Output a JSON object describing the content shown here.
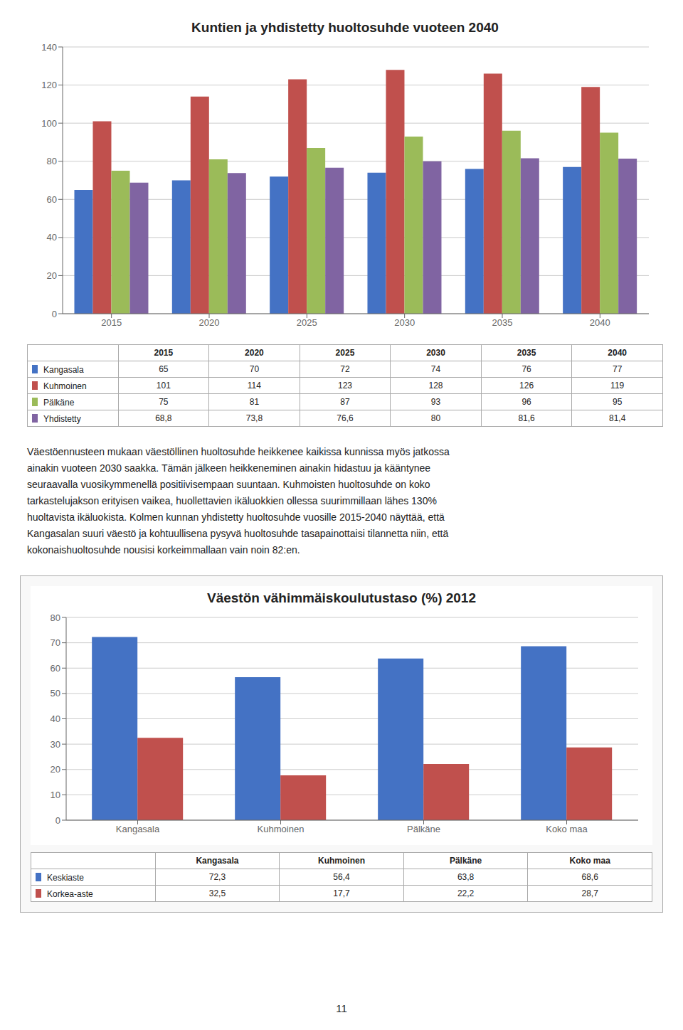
{
  "chart_data": [
    {
      "type": "bar",
      "title": "Kuntien ja yhdistetty huoltosuhde vuoteen 2040",
      "categories": [
        "2015",
        "2020",
        "2025",
        "2030",
        "2035",
        "2040"
      ],
      "series": [
        {
          "name": "Kangasala",
          "color": "#4472C4",
          "values": [
            65,
            70,
            72,
            74,
            76,
            77
          ],
          "value_labels": [
            "65",
            "70",
            "72",
            "74",
            "76",
            "77"
          ]
        },
        {
          "name": "Kuhmoinen",
          "color": "#C0504D",
          "values": [
            101,
            114,
            123,
            128,
            126,
            119
          ],
          "value_labels": [
            "101",
            "114",
            "123",
            "128",
            "126",
            "119"
          ]
        },
        {
          "name": "Pälkäne",
          "color": "#9BBB59",
          "values": [
            75,
            81,
            87,
            93,
            96,
            95
          ],
          "value_labels": [
            "75",
            "81",
            "87",
            "93",
            "96",
            "95"
          ]
        },
        {
          "name": "Yhdistetty",
          "color": "#8064A2",
          "values": [
            68.8,
            73.8,
            76.6,
            80,
            81.6,
            81.4
          ],
          "value_labels": [
            "68,8",
            "73,8",
            "76,6",
            "80",
            "81,6",
            "81,4"
          ]
        }
      ],
      "ylim": [
        0,
        140
      ],
      "yticks": [
        0,
        20,
        40,
        60,
        80,
        100,
        120,
        140
      ],
      "grid": true
    },
    {
      "type": "bar",
      "title": "Väestön vähimmäiskoulutustaso (%) 2012",
      "categories": [
        "Kangasala",
        "Kuhmoinen",
        "Pälkäne",
        "Koko maa"
      ],
      "series": [
        {
          "name": "Keskiaste",
          "color": "#4472C4",
          "values": [
            72.3,
            56.4,
            63.8,
            68.6
          ],
          "value_labels": [
            "72,3",
            "56,4",
            "63,8",
            "68,6"
          ]
        },
        {
          "name": "Korkea-aste",
          "color": "#C0504D",
          "values": [
            32.5,
            17.7,
            22.2,
            28.7
          ],
          "value_labels": [
            "32,5",
            "17,7",
            "22,2",
            "28,7"
          ]
        }
      ],
      "ylim": [
        0,
        80
      ],
      "yticks": [
        0,
        10,
        20,
        30,
        40,
        50,
        60,
        70,
        80
      ],
      "grid": true
    }
  ],
  "annotations": [
    "Väestöennusteen mukaan väestöllinen huoltosuhde heikkenee kaikissa kunnissa myös jatkossa",
    "ainakin vuoteen 2030 saakka. Tämän jälkeen heikkeneminen ainakin hidastuu ja kääntynee",
    "seuraavalla vuosikymmenellä positiivisempaan suuntaan. Kuhmoisten huoltosuhde on koko",
    "tarkastelujakson erityisen vaikea, huollettavien ikäluokkien ollessa suurimmillaan lähes 130%",
    "huoltavista ikäluokista. Kolmen kunnan yhdistetty huoltosuhde vuosille 2015-2040 näyttää, että",
    "Kangasalan suuri väestö ja kohtuullisena pysyvä huoltosuhde tasapainottaisi tilannetta niin, että",
    "kokonaishuoltosuhde nousisi korkeimmallaan vain noin 82:en."
  ],
  "page_number": "11"
}
